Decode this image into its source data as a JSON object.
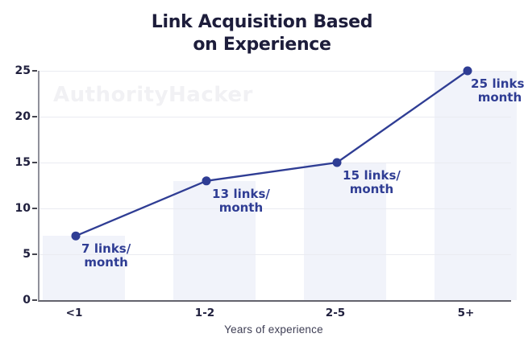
{
  "title": {
    "line1": "Link Acquisition Based",
    "line2": "on Experience"
  },
  "watermark": "AuthorityHacker",
  "chart_data": {
    "type": "line",
    "title": "Link Acquisition Based on Experience",
    "categories": [
      "<1",
      "1-2",
      "2-5",
      "5+"
    ],
    "values": [
      7,
      13,
      15,
      25
    ],
    "point_labels": [
      {
        "num": "7",
        "rest": "links/",
        "line2": "month"
      },
      {
        "num": "13",
        "rest": "links/",
        "line2": "month"
      },
      {
        "num": "15",
        "rest": "links/",
        "line2": "month"
      },
      {
        "num": "25",
        "rest": "links/",
        "line2": "month"
      }
    ],
    "xlabel": "Years of experience",
    "ylabel": "",
    "ylim": [
      0,
      25
    ],
    "yticks": [
      0,
      5,
      10,
      15,
      20,
      25
    ],
    "grid": true,
    "legend": false,
    "colors": {
      "line": "#2f3d94",
      "point": "#2f3d94",
      "point_label": "#2f3d94",
      "background_bar": "#f1f3fa",
      "gridline": "#eaebf1",
      "title_text": "#1d1d3b",
      "tick_text": "#20203e",
      "axis_title_text": "#3e3e54",
      "watermark_text": "#f1f1f4"
    }
  }
}
